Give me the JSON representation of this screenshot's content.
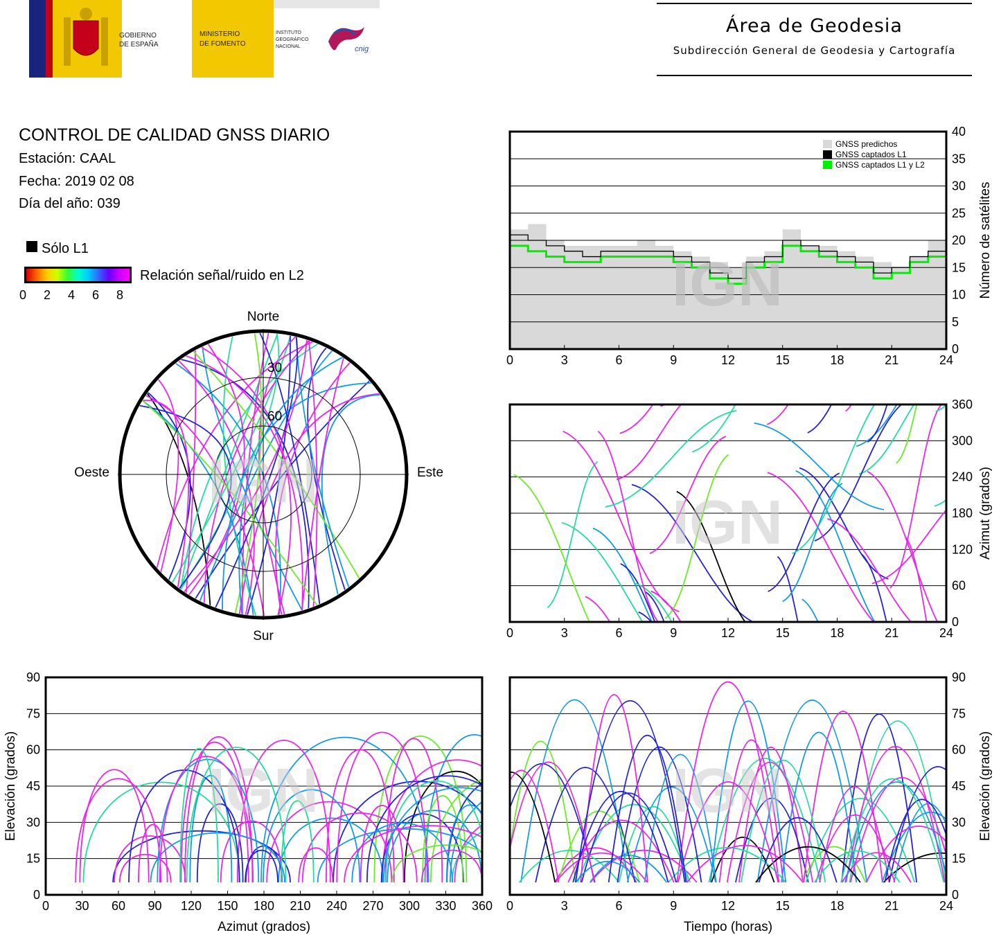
{
  "header": {
    "gov_line1": "GOBIERNO",
    "gov_line2": "DE ESPAÑA",
    "ministry_line1": "MINISTERIO",
    "ministry_line2": "DE FOMENTO",
    "institute_line1": "INSTITUTO",
    "institute_line2": "GEOGRÁFICO",
    "institute_line3": "NACIONAL",
    "cnig_logo_text": "cnig",
    "area_title": "Área de Geodesia",
    "area_subtitle": "Subdirección General de Geodesia y Cartografía"
  },
  "report": {
    "title": "CONTROL DE CALIDAD GNSS DIARIO",
    "station": "Estación: CAAL",
    "date": "Fecha: 2019 02 08",
    "doy": "Día del año: 039"
  },
  "legend": {
    "l1_only": "Sólo L1",
    "snr_label": "Relación señal/ruido en L2",
    "snr_ticks": [
      "0",
      "2",
      "4",
      "6",
      "8"
    ],
    "snr_colors": [
      "#cc0000",
      "#ff6600",
      "#ffcc00",
      "#ccff00",
      "#33ff33",
      "#00ffcc",
      "#00ccff",
      "#3366ff",
      "#6600ff",
      "#cc00ff",
      "#ff00ff"
    ],
    "l1_color": "#000000"
  },
  "watermark": "IGN",
  "chart_data": [
    {
      "type": "line",
      "name": "satellites",
      "x_ticks": [
        "0",
        "3",
        "6",
        "9",
        "12",
        "15",
        "18",
        "21",
        "24"
      ],
      "y_ticks": [
        "0",
        "5",
        "10",
        "15",
        "20",
        "25",
        "30",
        "35",
        "40"
      ],
      "xlim": [
        0,
        24
      ],
      "ylim": [
        0,
        40
      ],
      "ylabel": "Número de satélites",
      "legend": [
        "GNSS predichos",
        "GNSS captados L1",
        "GNSS captados L1 y L2"
      ],
      "colors": {
        "predicted": "#d9d9d9",
        "l1": "#000000",
        "l1l2": "#00ee00"
      },
      "series": [
        {
          "name": "GNSS predichos",
          "x": [
            0,
            1,
            2,
            3,
            4,
            5,
            6,
            7,
            8,
            9,
            10,
            11,
            12,
            13,
            14,
            15,
            16,
            17,
            18,
            19,
            20,
            21,
            22,
            23,
            24
          ],
          "values": [
            22,
            23,
            20,
            19,
            19,
            19,
            19,
            20,
            19,
            18,
            17,
            16,
            15,
            17,
            18,
            22,
            19,
            19,
            18,
            17,
            16,
            15,
            17,
            20,
            22
          ]
        },
        {
          "name": "GNSS captados L1",
          "x": [
            0,
            1,
            2,
            3,
            4,
            5,
            6,
            7,
            8,
            9,
            10,
            11,
            12,
            13,
            14,
            15,
            16,
            17,
            18,
            19,
            20,
            21,
            22,
            23,
            24
          ],
          "values": [
            21,
            20,
            19,
            18,
            17,
            18,
            18,
            18,
            18,
            17,
            16,
            14,
            13,
            16,
            17,
            20,
            19,
            18,
            17,
            16,
            14,
            15,
            17,
            18,
            20
          ]
        },
        {
          "name": "GNSS captados L1 y L2",
          "x": [
            0,
            1,
            2,
            3,
            4,
            5,
            6,
            7,
            8,
            9,
            10,
            11,
            12,
            13,
            14,
            15,
            16,
            17,
            18,
            19,
            20,
            21,
            22,
            23,
            24
          ],
          "values": [
            19,
            18,
            17,
            16,
            16,
            17,
            17,
            17,
            17,
            16,
            15,
            13,
            12,
            15,
            16,
            19,
            18,
            17,
            16,
            15,
            13,
            14,
            16,
            17,
            19
          ]
        }
      ]
    },
    {
      "type": "scatter",
      "name": "azimuth-time",
      "x_ticks": [
        "0",
        "3",
        "6",
        "9",
        "12",
        "15",
        "18",
        "21",
        "24"
      ],
      "y_ticks": [
        "0",
        "60",
        "120",
        "180",
        "240",
        "300",
        "360"
      ],
      "xlim": [
        0,
        24
      ],
      "ylim": [
        0,
        360
      ],
      "ylabel": "Azimut (grados)"
    },
    {
      "type": "scatter",
      "name": "elevation-azimuth",
      "x_ticks": [
        "0",
        "30",
        "60",
        "90",
        "120",
        "150",
        "180",
        "210",
        "240",
        "270",
        "300",
        "330",
        "360"
      ],
      "y_ticks": [
        "0",
        "15",
        "30",
        "45",
        "60",
        "75",
        "90"
      ],
      "xlim": [
        0,
        360
      ],
      "ylim": [
        0,
        90
      ],
      "xlabel": "Azimut (grados)",
      "ylabel": "Elevación (grados)"
    },
    {
      "type": "scatter",
      "name": "elevation-time",
      "x_ticks": [
        "0",
        "3",
        "6",
        "9",
        "12",
        "15",
        "18",
        "21",
        "24"
      ],
      "y_ticks": [
        "0",
        "15",
        "30",
        "45",
        "60",
        "75",
        "90"
      ],
      "xlim": [
        0,
        24
      ],
      "ylim": [
        0,
        90
      ],
      "xlabel": "Tiempo (horas)",
      "ylabel": "Elevación (grados)"
    },
    {
      "type": "scatter",
      "name": "skyplot",
      "directions": {
        "north": "Norte",
        "south": "Sur",
        "east": "Este",
        "west": "Oeste"
      },
      "rings": [
        "30",
        "60"
      ]
    }
  ]
}
